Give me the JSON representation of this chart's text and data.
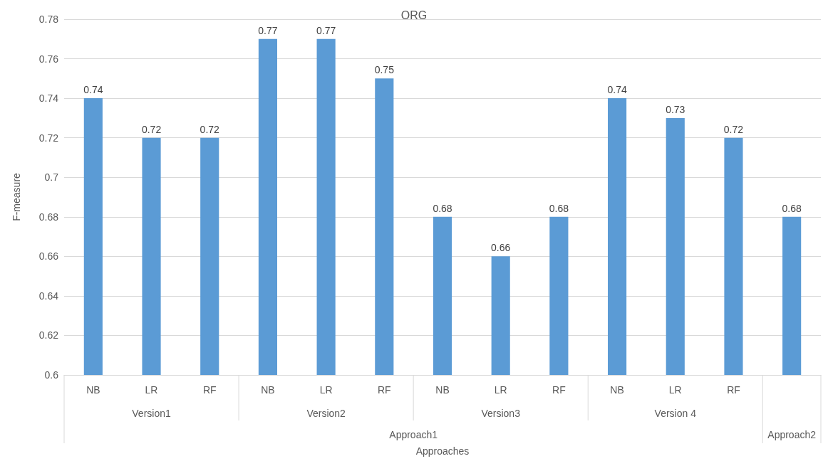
{
  "chart_data": {
    "type": "bar",
    "title": "ORG",
    "xlabel": "Approaches",
    "ylabel": "F-measure",
    "categories": [
      "NB",
      "LR",
      "RF",
      "NB",
      "LR",
      "RF",
      "NB",
      "LR",
      "RF",
      "NB",
      "LR",
      "RF",
      null
    ],
    "values": [
      0.74,
      0.72,
      0.72,
      0.77,
      0.77,
      0.75,
      0.68,
      0.66,
      0.68,
      0.74,
      0.73,
      0.72,
      0.68
    ],
    "color": "#5b9bd5",
    "ylim": [
      0.6,
      0.78
    ],
    "yticks": [
      0.6,
      0.62,
      0.64,
      0.66,
      0.68,
      0.7,
      0.72,
      0.74,
      0.76,
      0.78
    ],
    "grid": "y",
    "data_labels": true,
    "annotations": [
      "Version1",
      "Version2",
      "Version3",
      "Version 4",
      "Approach1",
      "Approach2"
    ]
  }
}
